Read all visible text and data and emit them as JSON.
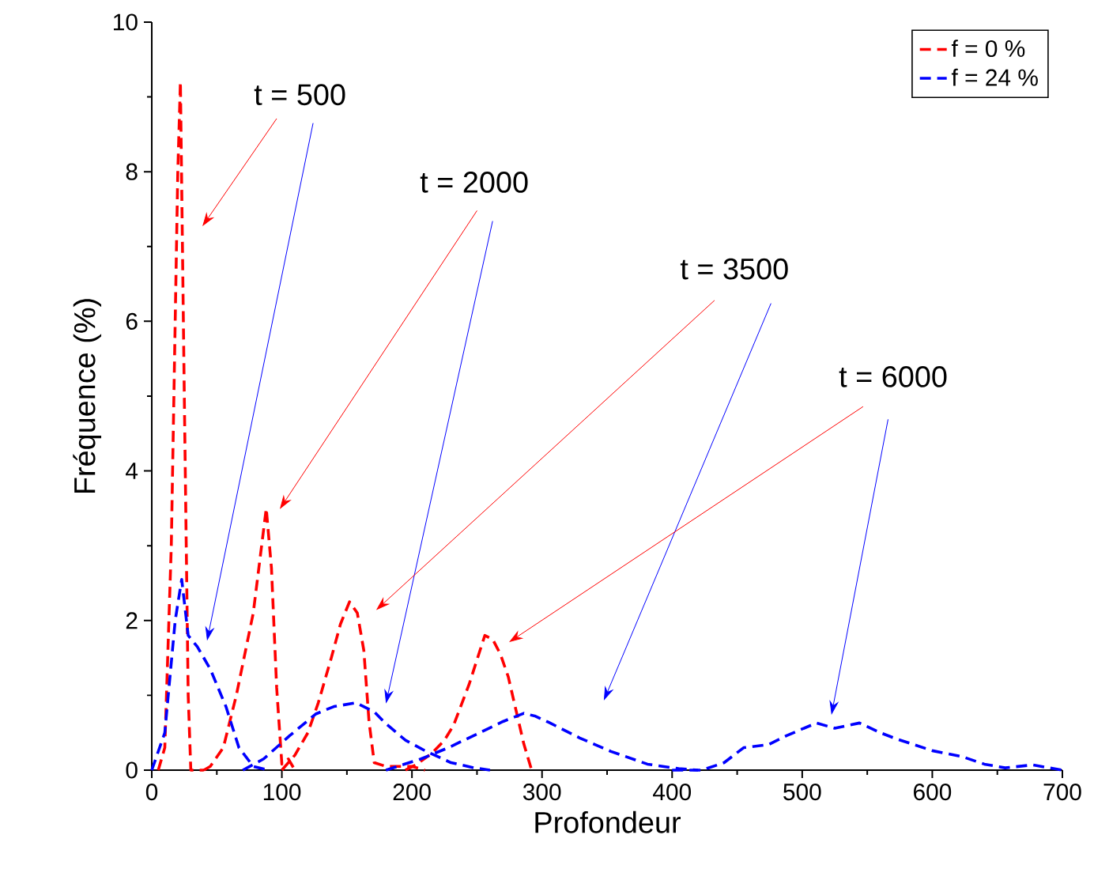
{
  "chart_data": {
    "type": "line",
    "xlabel": "Profondeur",
    "ylabel": "Fréquence (%)",
    "xlim": [
      0,
      700
    ],
    "ylim": [
      0,
      10
    ],
    "xticks": [
      0,
      100,
      200,
      300,
      400,
      500,
      600,
      700
    ],
    "yticks": [
      0,
      2,
      4,
      6,
      8,
      10
    ],
    "grid": false,
    "legend": "top right",
    "marker": "none",
    "line_style": "dashed",
    "annotations": [
      "t = 500",
      "t = 2000",
      "t = 3500",
      "t = 6000"
    ],
    "series": [
      {
        "name": "f = 0 %",
        "color": "#ff0000",
        "x": [
          5,
          10,
          15,
          20,
          22,
          25,
          28,
          30,
          40
        ],
        "values": [
          0,
          0.3,
          3,
          8,
          9.2,
          5,
          1,
          0,
          0
        ]
      },
      {
        "color": "#ff0000",
        "x": [
          40,
          45,
          55,
          65,
          78,
          88,
          92,
          96,
          100,
          105,
          110
        ],
        "values": [
          0,
          0.05,
          0.3,
          1.0,
          2.1,
          3.5,
          2.7,
          1.1,
          0.08,
          0.15,
          0
        ]
      },
      {
        "color": "#ff0000",
        "x": [
          100,
          110,
          120,
          128,
          138,
          145,
          152,
          158,
          163,
          167,
          171,
          180,
          200,
          210
        ],
        "values": [
          0,
          0.2,
          0.5,
          0.9,
          1.5,
          1.95,
          2.25,
          2.1,
          1.6,
          0.65,
          0.1,
          0.05,
          0.05,
          0
        ]
      },
      {
        "color": "#ff0000",
        "x": [
          195,
          203,
          215,
          225,
          232,
          244,
          256,
          262,
          268,
          274,
          280,
          286,
          292
        ],
        "values": [
          0,
          0.07,
          0.22,
          0.4,
          0.6,
          1.15,
          1.8,
          1.75,
          1.55,
          1.25,
          0.8,
          0.35,
          0
        ]
      },
      {
        "name": "f = 24 %",
        "color": "#0000ff",
        "x": [
          0,
          10,
          18,
          23,
          28,
          35,
          45,
          57,
          67,
          78,
          90
        ],
        "values": [
          0,
          0.5,
          2.0,
          2.55,
          1.8,
          1.65,
          1.35,
          0.85,
          0.3,
          0.05,
          0
        ]
      },
      {
        "color": "#0000ff",
        "x": [
          70,
          86,
          106,
          126,
          140,
          157,
          171,
          180,
          195,
          211,
          230,
          248,
          260
        ],
        "values": [
          0,
          0.15,
          0.46,
          0.75,
          0.85,
          0.9,
          0.78,
          0.62,
          0.4,
          0.25,
          0.1,
          0.03,
          0
        ]
      },
      {
        "color": "#0000ff",
        "x": [
          180,
          207,
          228,
          252,
          270,
          286,
          295,
          305,
          329,
          353,
          381,
          405,
          420
        ],
        "values": [
          0,
          0.15,
          0.3,
          0.5,
          0.65,
          0.76,
          0.72,
          0.64,
          0.43,
          0.25,
          0.08,
          0.02,
          0
        ]
      },
      {
        "color": "#0000ff",
        "x": [
          400,
          423,
          440,
          455,
          474,
          488,
          500,
          511,
          525,
          544,
          560,
          572,
          600,
          623,
          640,
          656,
          677,
          700
        ],
        "values": [
          0,
          0,
          0.1,
          0.3,
          0.34,
          0.46,
          0.55,
          0.63,
          0.56,
          0.63,
          0.5,
          0.42,
          0.26,
          0.18,
          0.08,
          0.03,
          0.07,
          0
        ]
      }
    ]
  }
}
